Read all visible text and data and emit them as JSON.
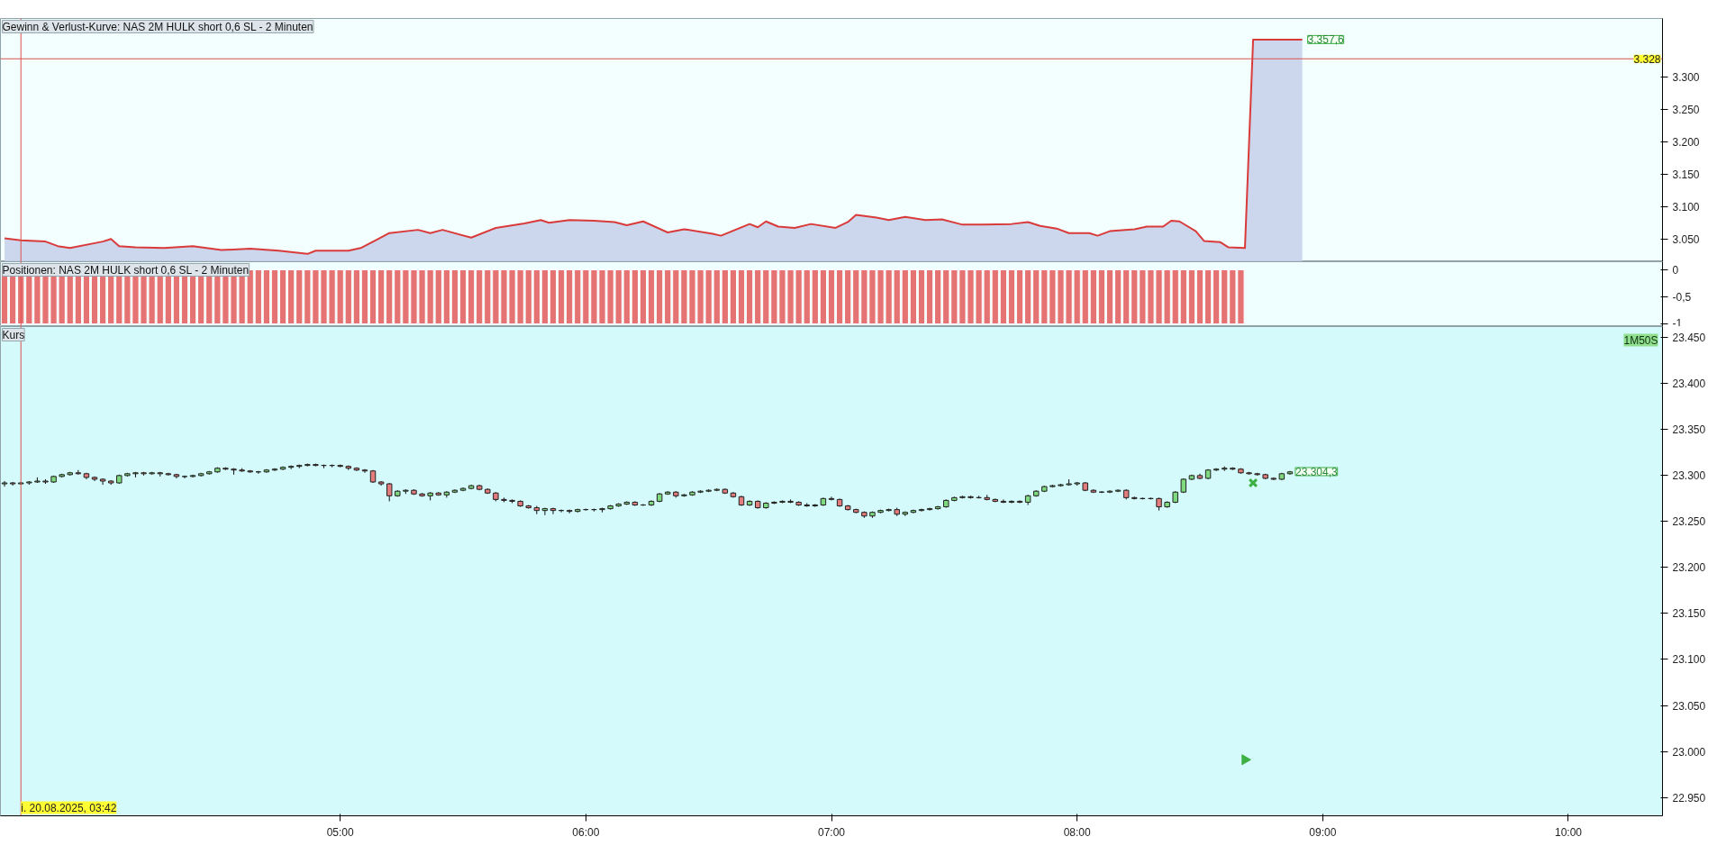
{
  "chart_data": [
    {
      "type": "area",
      "title": "Gewinn & Verlust-Kurve: NAS 2M HULK short 0,6 SL - 2 Minuten",
      "x": [
        "2025-08-20T03:38",
        "2025-08-20T03:42",
        "2025-08-20T03:48",
        "2025-08-20T03:51",
        "2025-08-20T03:54",
        "2025-08-20T04:02",
        "2025-08-20T04:04",
        "2025-08-20T04:06",
        "2025-08-20T04:10",
        "2025-08-20T04:17",
        "2025-08-20T04:24",
        "2025-08-20T04:31",
        "2025-08-20T04:38",
        "2025-08-20T04:45",
        "2025-08-20T04:52",
        "2025-08-20T04:54",
        "2025-08-20T05:02",
        "2025-08-20T05:05",
        "2025-08-20T05:09",
        "2025-08-20T05:12",
        "2025-08-20T05:19",
        "2025-08-20T05:22",
        "2025-08-20T05:25",
        "2025-08-20T05:32",
        "2025-08-20T05:38",
        "2025-08-20T05:45",
        "2025-08-20T05:49",
        "2025-08-20T05:51",
        "2025-08-20T05:56",
        "2025-08-20T06:02",
        "2025-08-20T06:07",
        "2025-08-20T06:10",
        "2025-08-20T06:14",
        "2025-08-20T06:20",
        "2025-08-20T06:24",
        "2025-08-20T06:31",
        "2025-08-20T06:33",
        "2025-08-20T06:40",
        "2025-08-20T06:42",
        "2025-08-20T06:44",
        "2025-08-20T06:47",
        "2025-08-20T06:51",
        "2025-08-20T06:55",
        "2025-08-20T07:01",
        "2025-08-20T07:04",
        "2025-08-20T07:06",
        "2025-08-20T07:11",
        "2025-08-20T07:14",
        "2025-08-20T07:18",
        "2025-08-20T07:23",
        "2025-08-20T07:27",
        "2025-08-20T07:32",
        "2025-08-20T07:37",
        "2025-08-20T07:44",
        "2025-08-20T07:48",
        "2025-08-20T07:51",
        "2025-08-20T07:55",
        "2025-08-20T07:58",
        "2025-08-20T08:03",
        "2025-08-20T08:05",
        "2025-08-20T08:08",
        "2025-08-20T08:14",
        "2025-08-20T08:17",
        "2025-08-20T08:21",
        "2025-08-20T08:23",
        "2025-08-20T08:25",
        "2025-08-20T08:29",
        "2025-08-20T08:31",
        "2025-08-20T08:35",
        "2025-08-20T08:37",
        "2025-08-20T08:41",
        "2025-08-20T08:43",
        "2025-08-20T08:55"
      ],
      "series": [
        {
          "color": "#d93b3b",
          "values": [
            3052,
            3049,
            3047,
            3040,
            3037,
            3047,
            3051,
            3040,
            3038,
            3037,
            3040,
            3034,
            3036,
            3033,
            3028,
            3033,
            3033,
            3037,
            3050,
            3060,
            3065,
            3060,
            3065,
            3053,
            3068,
            3075,
            3080,
            3076,
            3080,
            3079,
            3077,
            3072,
            3078,
            3061,
            3066,
            3059,
            3056,
            3074,
            3069,
            3078,
            3070,
            3068,
            3074,
            3068,
            3077,
            3088,
            3084,
            3080,
            3085,
            3080,
            3081,
            3073,
            3073,
            3074,
            3077,
            3071,
            3067,
            3060,
            3060,
            3056,
            3063,
            3066,
            3070,
            3070,
            3079,
            3078,
            3063,
            3048,
            3046,
            3038,
            3037,
            3357.6,
            3357.6
          ]
        }
      ],
      "xlim": [
        "2025-08-20T03:37",
        "2025-08-20T10:23"
      ],
      "ylim": [
        3016,
        3390
      ],
      "yticks": [
        {
          "value": 3050,
          "label": "3.050"
        },
        {
          "value": 3100,
          "label": "3.100"
        },
        {
          "value": 3150,
          "label": "3.150"
        },
        {
          "value": 3200,
          "label": "3.200"
        },
        {
          "value": 3250,
          "label": "3.250"
        },
        {
          "value": 3300,
          "label": "3.300"
        }
      ],
      "ref_lines": [
        {
          "axis": "y",
          "value": 3328,
          "label": "3.328",
          "color": "#d9534f"
        },
        {
          "axis": "x",
          "value": "2025-08-20T03:42",
          "color": "#e05050"
        }
      ],
      "annotations": [
        {
          "text": "3.357,6",
          "x": "2025-08-20T08:55",
          "y": 3357.6
        }
      ],
      "grid": false,
      "tick_labels": "y"
    },
    {
      "type": "bar",
      "title": "Positionen: NAS 2M HULK short 0,6 SL - 2 Minuten",
      "color": "#e57373",
      "x": [
        "2025-08-20T03:38",
        "2025-08-20T03:40",
        "2025-08-20T03:42",
        "2025-08-20T03:44",
        "2025-08-20T03:46",
        "2025-08-20T03:48",
        "2025-08-20T03:50",
        "2025-08-20T03:52",
        "2025-08-20T03:54",
        "2025-08-20T03:56",
        "2025-08-20T03:58",
        "2025-08-20T04:00",
        "2025-08-20T04:02",
        "2025-08-20T04:04",
        "2025-08-20T04:06",
        "2025-08-20T04:08",
        "2025-08-20T04:10",
        "2025-08-20T04:12",
        "2025-08-20T04:14",
        "2025-08-20T04:16",
        "2025-08-20T04:18",
        "2025-08-20T04:20",
        "2025-08-20T04:22",
        "2025-08-20T04:24",
        "2025-08-20T04:26",
        "2025-08-20T04:28",
        "2025-08-20T04:30",
        "2025-08-20T04:32",
        "2025-08-20T04:34",
        "2025-08-20T04:36",
        "2025-08-20T04:38",
        "2025-08-20T04:40",
        "2025-08-20T04:42",
        "2025-08-20T04:44",
        "2025-08-20T04:46",
        "2025-08-20T04:48",
        "2025-08-20T04:50",
        "2025-08-20T04:52",
        "2025-08-20T04:54",
        "2025-08-20T04:56",
        "2025-08-20T04:58",
        "2025-08-20T05:00",
        "2025-08-20T05:02",
        "2025-08-20T05:04",
        "2025-08-20T05:06",
        "2025-08-20T05:08",
        "2025-08-20T05:10",
        "2025-08-20T05:12",
        "2025-08-20T05:14",
        "2025-08-20T05:16",
        "2025-08-20T05:18",
        "2025-08-20T05:20",
        "2025-08-20T05:22",
        "2025-08-20T05:24",
        "2025-08-20T05:26",
        "2025-08-20T05:28",
        "2025-08-20T05:30",
        "2025-08-20T05:32",
        "2025-08-20T05:34",
        "2025-08-20T05:36",
        "2025-08-20T05:38",
        "2025-08-20T05:40",
        "2025-08-20T05:42",
        "2025-08-20T05:44",
        "2025-08-20T05:46",
        "2025-08-20T05:48",
        "2025-08-20T05:50",
        "2025-08-20T05:52",
        "2025-08-20T05:54",
        "2025-08-20T05:56",
        "2025-08-20T05:58",
        "2025-08-20T06:00",
        "2025-08-20T06:02",
        "2025-08-20T06:04",
        "2025-08-20T06:06",
        "2025-08-20T06:08",
        "2025-08-20T06:10",
        "2025-08-20T06:12",
        "2025-08-20T06:14",
        "2025-08-20T06:16",
        "2025-08-20T06:18",
        "2025-08-20T06:20",
        "2025-08-20T06:22",
        "2025-08-20T06:24",
        "2025-08-20T06:26",
        "2025-08-20T06:28",
        "2025-08-20T06:30",
        "2025-08-20T06:32",
        "2025-08-20T06:34",
        "2025-08-20T06:36",
        "2025-08-20T06:38",
        "2025-08-20T06:40",
        "2025-08-20T06:42",
        "2025-08-20T06:44",
        "2025-08-20T06:46",
        "2025-08-20T06:48",
        "2025-08-20T06:50",
        "2025-08-20T06:52",
        "2025-08-20T06:54",
        "2025-08-20T06:56",
        "2025-08-20T06:58",
        "2025-08-20T07:00",
        "2025-08-20T07:02",
        "2025-08-20T07:04",
        "2025-08-20T07:06",
        "2025-08-20T07:08",
        "2025-08-20T07:10",
        "2025-08-20T07:12",
        "2025-08-20T07:14",
        "2025-08-20T07:16",
        "2025-08-20T07:18",
        "2025-08-20T07:20",
        "2025-08-20T07:22",
        "2025-08-20T07:24",
        "2025-08-20T07:26",
        "2025-08-20T07:28",
        "2025-08-20T07:30",
        "2025-08-20T07:32",
        "2025-08-20T07:34",
        "2025-08-20T07:36",
        "2025-08-20T07:38",
        "2025-08-20T07:40",
        "2025-08-20T07:42",
        "2025-08-20T07:44",
        "2025-08-20T07:46",
        "2025-08-20T07:48",
        "2025-08-20T07:50",
        "2025-08-20T07:52",
        "2025-08-20T07:54",
        "2025-08-20T07:56",
        "2025-08-20T07:58",
        "2025-08-20T08:00",
        "2025-08-20T08:02",
        "2025-08-20T08:04",
        "2025-08-20T08:06",
        "2025-08-20T08:08",
        "2025-08-20T08:10",
        "2025-08-20T08:12",
        "2025-08-20T08:14",
        "2025-08-20T08:16",
        "2025-08-20T08:18",
        "2025-08-20T08:20",
        "2025-08-20T08:22",
        "2025-08-20T08:24",
        "2025-08-20T08:26",
        "2025-08-20T08:28",
        "2025-08-20T08:30",
        "2025-08-20T08:32",
        "2025-08-20T08:34",
        "2025-08-20T08:36",
        "2025-08-20T08:38",
        "2025-08-20T08:40"
      ],
      "values": [
        -1,
        -1,
        -1,
        -1,
        -1,
        -1,
        -1,
        -1,
        -1,
        -1,
        -1,
        -1,
        -1,
        -1,
        -1,
        -1,
        -1,
        -1,
        -1,
        -1,
        -1,
        -1,
        -1,
        -1,
        -1,
        -1,
        -1,
        -1,
        -1,
        -1,
        -1,
        -1,
        -1,
        -1,
        -1,
        -1,
        -1,
        -1,
        -1,
        -1,
        -1,
        -1,
        -1,
        -1,
        -1,
        -1,
        -1,
        -1,
        -1,
        -1,
        -1,
        -1,
        -1,
        -1,
        -1,
        -1,
        -1,
        -1,
        -1,
        -1,
        -1,
        -1,
        -1,
        -1,
        -1,
        -1,
        -1,
        -1,
        -1,
        -1,
        -1,
        -1,
        -1,
        -1,
        -1,
        -1,
        -1,
        -1,
        -1,
        -1,
        -1,
        -1,
        -1,
        -1,
        -1,
        -1,
        -1,
        -1,
        -1,
        -1,
        -1,
        -1,
        -1,
        -1,
        -1,
        -1,
        -1,
        -1,
        -1,
        -1,
        -1,
        -1,
        -1,
        -1,
        -1,
        -1,
        -1,
        -1,
        -1,
        -1,
        -1,
        -1,
        -1,
        -1,
        -1,
        -1,
        -1,
        -1,
        -1,
        -1,
        -1,
        -1,
        -1,
        -1,
        -1,
        -1,
        -1,
        -1,
        -1,
        -1,
        -1,
        -1,
        -1,
        -1,
        -1,
        -1,
        -1,
        -1,
        -1,
        -1,
        -1,
        -1,
        -1,
        -1,
        -1,
        -1,
        -1,
        -1,
        -1,
        -1,
        -1,
        -1
      ],
      "xlim": [
        "2025-08-20T03:37",
        "2025-08-20T10:23"
      ],
      "ylim": [
        -1.05,
        0.15
      ],
      "yticks": [
        0,
        {
          "value": -0.5,
          "label": "-0,5"
        },
        -1
      ],
      "ref_lines": [
        {
          "axis": "x",
          "value": "2025-08-20T03:42",
          "color": "#e05050"
        }
      ],
      "grid": false,
      "tick_labels": "y"
    },
    {
      "type": "candlestick",
      "title": "Kurs",
      "x": [
        "2025-08-20T03:38",
        "2025-08-20T03:40",
        "2025-08-20T03:42",
        "2025-08-20T03:44",
        "2025-08-20T03:46",
        "2025-08-20T03:48",
        "2025-08-20T03:50",
        "2025-08-20T03:52",
        "2025-08-20T03:54",
        "2025-08-20T03:56",
        "2025-08-20T03:58",
        "2025-08-20T04:00",
        "2025-08-20T04:02",
        "2025-08-20T04:04",
        "2025-08-20T04:06",
        "2025-08-20T04:08",
        "2025-08-20T04:10",
        "2025-08-20T04:12",
        "2025-08-20T04:14",
        "2025-08-20T04:16",
        "2025-08-20T04:18",
        "2025-08-20T04:20",
        "2025-08-20T04:22",
        "2025-08-20T04:24",
        "2025-08-20T04:26",
        "2025-08-20T04:28",
        "2025-08-20T04:30",
        "2025-08-20T04:32",
        "2025-08-20T04:34",
        "2025-08-20T04:36",
        "2025-08-20T04:38",
        "2025-08-20T04:40",
        "2025-08-20T04:42",
        "2025-08-20T04:44",
        "2025-08-20T04:46",
        "2025-08-20T04:48",
        "2025-08-20T04:50",
        "2025-08-20T04:52",
        "2025-08-20T04:54",
        "2025-08-20T04:56",
        "2025-08-20T04:58",
        "2025-08-20T05:00",
        "2025-08-20T05:02",
        "2025-08-20T05:04",
        "2025-08-20T05:06",
        "2025-08-20T05:08",
        "2025-08-20T05:10",
        "2025-08-20T05:12",
        "2025-08-20T05:14",
        "2025-08-20T05:16",
        "2025-08-20T05:18",
        "2025-08-20T05:20",
        "2025-08-20T05:22",
        "2025-08-20T05:24",
        "2025-08-20T05:26",
        "2025-08-20T05:28",
        "2025-08-20T05:30",
        "2025-08-20T05:32",
        "2025-08-20T05:34",
        "2025-08-20T05:36",
        "2025-08-20T05:38",
        "2025-08-20T05:40",
        "2025-08-20T05:42",
        "2025-08-20T05:44",
        "2025-08-20T05:46",
        "2025-08-20T05:48",
        "2025-08-20T05:50",
        "2025-08-20T05:52",
        "2025-08-20T05:54",
        "2025-08-20T05:56",
        "2025-08-20T05:58",
        "2025-08-20T06:00",
        "2025-08-20T06:02",
        "2025-08-20T06:04",
        "2025-08-20T06:06",
        "2025-08-20T06:08",
        "2025-08-20T06:10",
        "2025-08-20T06:12",
        "2025-08-20T06:14",
        "2025-08-20T06:16",
        "2025-08-20T06:18",
        "2025-08-20T06:20",
        "2025-08-20T06:22",
        "2025-08-20T06:24",
        "2025-08-20T06:26",
        "2025-08-20T06:28",
        "2025-08-20T06:30",
        "2025-08-20T06:32",
        "2025-08-20T06:34",
        "2025-08-20T06:36",
        "2025-08-20T06:38",
        "2025-08-20T06:40",
        "2025-08-20T06:42",
        "2025-08-20T06:44",
        "2025-08-20T06:46",
        "2025-08-20T06:48",
        "2025-08-20T06:50",
        "2025-08-20T06:52",
        "2025-08-20T06:54",
        "2025-08-20T06:56",
        "2025-08-20T06:58",
        "2025-08-20T07:00",
        "2025-08-20T07:02",
        "2025-08-20T07:04",
        "2025-08-20T07:06",
        "2025-08-20T07:08",
        "2025-08-20T07:10",
        "2025-08-20T07:12",
        "2025-08-20T07:14",
        "2025-08-20T07:16",
        "2025-08-20T07:18",
        "2025-08-20T07:20",
        "2025-08-20T07:22",
        "2025-08-20T07:24",
        "2025-08-20T07:26",
        "2025-08-20T07:28",
        "2025-08-20T07:30",
        "2025-08-20T07:32",
        "2025-08-20T07:34",
        "2025-08-20T07:36",
        "2025-08-20T07:38",
        "2025-08-20T07:40",
        "2025-08-20T07:42",
        "2025-08-20T07:44",
        "2025-08-20T07:46",
        "2025-08-20T07:48",
        "2025-08-20T07:50",
        "2025-08-20T07:52",
        "2025-08-20T07:54",
        "2025-08-20T07:56",
        "2025-08-20T07:58",
        "2025-08-20T08:00",
        "2025-08-20T08:02",
        "2025-08-20T08:04",
        "2025-08-20T08:06",
        "2025-08-20T08:08",
        "2025-08-20T08:10",
        "2025-08-20T08:12",
        "2025-08-20T08:14",
        "2025-08-20T08:16",
        "2025-08-20T08:18",
        "2025-08-20T08:20",
        "2025-08-20T08:22",
        "2025-08-20T08:24",
        "2025-08-20T08:26",
        "2025-08-20T08:28",
        "2025-08-20T08:30",
        "2025-08-20T08:32",
        "2025-08-20T08:34",
        "2025-08-20T08:36",
        "2025-08-20T08:38",
        "2025-08-20T08:40",
        "2025-08-20T08:42",
        "2025-08-20T08:44",
        "2025-08-20T08:46",
        "2025-08-20T08:48",
        "2025-08-20T08:50",
        "2025-08-20T08:52"
      ],
      "ohlc": [
        [
          23291,
          23294,
          23288,
          23292
        ],
        [
          23292,
          23293,
          23289,
          23291
        ],
        [
          23291,
          23293,
          23290,
          23292
        ],
        [
          23292,
          23294,
          23290,
          23293
        ],
        [
          23293,
          23298,
          23292,
          23294
        ],
        [
          23294,
          23296,
          23291,
          23293
        ],
        [
          23293,
          23300,
          23292,
          23299
        ],
        [
          23299,
          23302,
          23298,
          23301
        ],
        [
          23301,
          23304,
          23300,
          23303
        ],
        [
          23303,
          23306,
          23301,
          23302
        ],
        [
          23302,
          23303,
          23296,
          23298
        ],
        [
          23298,
          23299,
          23294,
          23296
        ],
        [
          23296,
          23297,
          23290,
          23294
        ],
        [
          23294,
          23295,
          23290,
          23292
        ],
        [
          23292,
          23301,
          23291,
          23300
        ],
        [
          23300,
          23303,
          23299,
          23302
        ],
        [
          23302,
          23304,
          23298,
          23303
        ],
        [
          23303,
          23304,
          23300,
          23302
        ],
        [
          23302,
          23304,
          23301,
          23303
        ],
        [
          23303,
          23304,
          23299,
          23302
        ],
        [
          23302,
          23303,
          23300,
          23301
        ],
        [
          23301,
          23302,
          23297,
          23299
        ],
        [
          23299,
          23300,
          23297,
          23299
        ],
        [
          23299,
          23301,
          23298,
          23300
        ],
        [
          23300,
          23303,
          23299,
          23302
        ],
        [
          23302,
          23305,
          23301,
          23304
        ],
        [
          23304,
          23309,
          23303,
          23308
        ],
        [
          23308,
          23309,
          23306,
          23307
        ],
        [
          23307,
          23308,
          23301,
          23306
        ],
        [
          23306,
          23308,
          23304,
          23305
        ],
        [
          23305,
          23306,
          23303,
          23304
        ],
        [
          23304,
          23305,
          23302,
          23304
        ],
        [
          23304,
          23307,
          23303,
          23306
        ],
        [
          23306,
          23308,
          23305,
          23307
        ],
        [
          23307,
          23310,
          23306,
          23309
        ],
        [
          23309,
          23311,
          23307,
          23310
        ],
        [
          23310,
          23312,
          23308,
          23311
        ],
        [
          23311,
          23313,
          23310,
          23312
        ],
        [
          23312,
          23313,
          23310,
          23311
        ],
        [
          23311,
          23312,
          23308,
          23311
        ],
        [
          23311,
          23312,
          23309,
          23311
        ],
        [
          23311,
          23312,
          23309,
          23310
        ],
        [
          23310,
          23311,
          23306,
          23308
        ],
        [
          23308,
          23309,
          23305,
          23306
        ],
        [
          23306,
          23307,
          23303,
          23305
        ],
        [
          23305,
          23306,
          23292,
          23293
        ],
        [
          23293,
          23294,
          23289,
          23291
        ],
        [
          23291,
          23292,
          23272,
          23278
        ],
        [
          23278,
          23284,
          23277,
          23283
        ],
        [
          23283,
          23285,
          23280,
          23284
        ],
        [
          23284,
          23285,
          23279,
          23280
        ],
        [
          23280,
          23281,
          23277,
          23278
        ],
        [
          23278,
          23282,
          23273,
          23281
        ],
        [
          23281,
          23282,
          23278,
          23279
        ],
        [
          23279,
          23283,
          23276,
          23282
        ],
        [
          23282,
          23285,
          23281,
          23284
        ],
        [
          23284,
          23287,
          23283,
          23286
        ],
        [
          23286,
          23290,
          23285,
          23289
        ],
        [
          23289,
          23290,
          23284,
          23285
        ],
        [
          23285,
          23286,
          23280,
          23281
        ],
        [
          23281,
          23282,
          23272,
          23274
        ],
        [
          23274,
          23276,
          23271,
          23273
        ],
        [
          23273,
          23274,
          23270,
          23272
        ],
        [
          23272,
          23273,
          23266,
          23267
        ],
        [
          23267,
          23268,
          23264,
          23265
        ],
        [
          23265,
          23267,
          23258,
          23262
        ],
        [
          23262,
          23265,
          23257,
          23264
        ],
        [
          23264,
          23265,
          23258,
          23262
        ],
        [
          23262,
          23263,
          23260,
          23262
        ],
        [
          23262,
          23263,
          23259,
          23261
        ],
        [
          23261,
          23264,
          23260,
          23263
        ],
        [
          23263,
          23264,
          23262,
          23263
        ],
        [
          23263,
          23264,
          23261,
          23263
        ],
        [
          23263,
          23265,
          23260,
          23264
        ],
        [
          23264,
          23268,
          23263,
          23267
        ],
        [
          23267,
          23270,
          23266,
          23269
        ],
        [
          23269,
          23272,
          23268,
          23271
        ],
        [
          23271,
          23272,
          23267,
          23268
        ],
        [
          23268,
          23269,
          23267,
          23268
        ],
        [
          23268,
          23273,
          23267,
          23272
        ],
        [
          23272,
          23281,
          23271,
          23280
        ],
        [
          23280,
          23283,
          23279,
          23282
        ],
        [
          23282,
          23283,
          23276,
          23278
        ],
        [
          23278,
          23280,
          23277,
          23279
        ],
        [
          23279,
          23283,
          23278,
          23282
        ],
        [
          23282,
          23284,
          23281,
          23283
        ],
        [
          23283,
          23285,
          23282,
          23284
        ],
        [
          23284,
          23286,
          23283,
          23285
        ],
        [
          23285,
          23286,
          23280,
          23281
        ],
        [
          23281,
          23282,
          23276,
          23277
        ],
        [
          23277,
          23278,
          23267,
          23268
        ],
        [
          23268,
          23273,
          23267,
          23272
        ],
        [
          23272,
          23273,
          23264,
          23265
        ],
        [
          23265,
          23271,
          23264,
          23270
        ],
        [
          23270,
          23272,
          23269,
          23271
        ],
        [
          23271,
          23273,
          23270,
          23272
        ],
        [
          23272,
          23274,
          23270,
          23271
        ],
        [
          23271,
          23272,
          23267,
          23268
        ],
        [
          23268,
          23270,
          23266,
          23267
        ],
        [
          23267,
          23269,
          23266,
          23268
        ],
        [
          23268,
          23276,
          23267,
          23275
        ],
        [
          23275,
          23277,
          23273,
          23274
        ],
        [
          23274,
          23275,
          23266,
          23267
        ],
        [
          23267,
          23268,
          23262,
          23263
        ],
        [
          23263,
          23264,
          23259,
          23260
        ],
        [
          23260,
          23261,
          23254,
          23256
        ],
        [
          23256,
          23261,
          23254,
          23260
        ],
        [
          23260,
          23263,
          23259,
          23262
        ],
        [
          23262,
          23264,
          23261,
          23263
        ],
        [
          23263,
          23265,
          23256,
          23258
        ],
        [
          23258,
          23261,
          23256,
          23260
        ],
        [
          23260,
          23263,
          23259,
          23262
        ],
        [
          23262,
          23264,
          23261,
          23263
        ],
        [
          23263,
          23265,
          23262,
          23264
        ],
        [
          23264,
          23267,
          23263,
          23266
        ],
        [
          23266,
          23274,
          23265,
          23273
        ],
        [
          23273,
          23277,
          23272,
          23276
        ],
        [
          23276,
          23278,
          23275,
          23277
        ],
        [
          23277,
          23278,
          23275,
          23276
        ],
        [
          23276,
          23278,
          23275,
          23276
        ],
        [
          23276,
          23279,
          23273,
          23274
        ],
        [
          23274,
          23275,
          23271,
          23272
        ],
        [
          23272,
          23274,
          23270,
          23271
        ],
        [
          23271,
          23273,
          23270,
          23272
        ],
        [
          23272,
          23273,
          23270,
          23271
        ],
        [
          23271,
          23279,
          23268,
          23278
        ],
        [
          23278,
          23284,
          23277,
          23283
        ],
        [
          23283,
          23289,
          23282,
          23288
        ],
        [
          23288,
          23290,
          23287,
          23289
        ],
        [
          23289,
          23291,
          23288,
          23290
        ],
        [
          23290,
          23296,
          23289,
          23291
        ],
        [
          23291,
          23293,
          23289,
          23292
        ],
        [
          23292,
          23293,
          23283,
          23284
        ],
        [
          23284,
          23285,
          23281,
          23282
        ],
        [
          23282,
          23283,
          23281,
          23282
        ],
        [
          23282,
          23284,
          23281,
          23283
        ],
        [
          23283,
          23285,
          23282,
          23284
        ],
        [
          23284,
          23285,
          23274,
          23276
        ],
        [
          23276,
          23277,
          23274,
          23275
        ],
        [
          23275,
          23276,
          23274,
          23275
        ],
        [
          23275,
          23276,
          23274,
          23275
        ],
        [
          23275,
          23276,
          23262,
          23266
        ],
        [
          23266,
          23272,
          23265,
          23271
        ],
        [
          23271,
          23283,
          23270,
          23282
        ],
        [
          23282,
          23297,
          23281,
          23296
        ],
        [
          23296,
          23301,
          23295,
          23300
        ],
        [
          23300,
          23302,
          23296,
          23297
        ],
        [
          23297,
          23307,
          23296,
          23306
        ],
        [
          23306,
          23308,
          23305,
          23307
        ],
        [
          23307,
          23310,
          23305,
          23308
        ],
        [
          23308,
          23309,
          23306,
          23307
        ],
        [
          23307,
          23308,
          23302,
          23303
        ],
        [
          23303,
          23304,
          23301,
          23302
        ],
        [
          23302,
          23303,
          23300,
          23301
        ],
        [
          23301,
          23302,
          23296,
          23297
        ],
        [
          23297,
          23298,
          23295,
          23296
        ],
        [
          23296,
          23303,
          23295,
          23302
        ],
        [
          23302,
          23305,
          23301,
          23304
        ]
      ],
      "series": [
        {
          "type": "scatter",
          "marker": "cross",
          "color": "#3cb043",
          "x": [
            "2025-08-20T08:43"
          ],
          "values": [
            23292
          ]
        },
        {
          "type": "scatter",
          "marker": "triangle",
          "color": "#3cb043",
          "x": [
            "2025-08-20T08:41"
          ],
          "values": [
            22991
          ]
        }
      ],
      "xlim": [
        "2025-08-20T03:37",
        "2025-08-20T10:23"
      ],
      "xticks": [
        {
          "value": "2025-08-20T05:00",
          "label": "05:00"
        },
        {
          "value": "2025-08-20T06:00",
          "label": "06:00"
        },
        {
          "value": "2025-08-20T07:00",
          "label": "07:00"
        },
        {
          "value": "2025-08-20T08:00",
          "label": "08:00"
        },
        {
          "value": "2025-08-20T09:00",
          "label": "09:00"
        },
        {
          "value": "2025-08-20T10:00",
          "label": "10:00"
        }
      ],
      "ylim": [
        22930,
        23462
      ],
      "yticks": [
        {
          "value": 22950,
          "label": "22.950"
        },
        {
          "value": 23000,
          "label": "23.000"
        },
        {
          "value": 23050,
          "label": "23.050"
        },
        {
          "value": 23100,
          "label": "23.100"
        },
        {
          "value": 23150,
          "label": "23.150"
        },
        {
          "value": 23200,
          "label": "23.200"
        },
        {
          "value": 23250,
          "label": "23.250"
        },
        {
          "value": 23300,
          "label": "23.300"
        },
        {
          "value": 23350,
          "label": "23.350"
        },
        {
          "value": 23400,
          "label": "23.400"
        },
        {
          "value": 23450,
          "label": "23.450"
        }
      ],
      "ref_lines": [
        {
          "axis": "x",
          "value": "2025-08-20T03:42",
          "label": "i. 20.08.2025, 03:42",
          "color": "#e05050"
        }
      ],
      "annotations": [
        {
          "text": "23.304,3",
          "x": "2025-08-20T08:52",
          "y": 23304.3
        },
        "1M50S"
      ],
      "grid": false
    }
  ]
}
